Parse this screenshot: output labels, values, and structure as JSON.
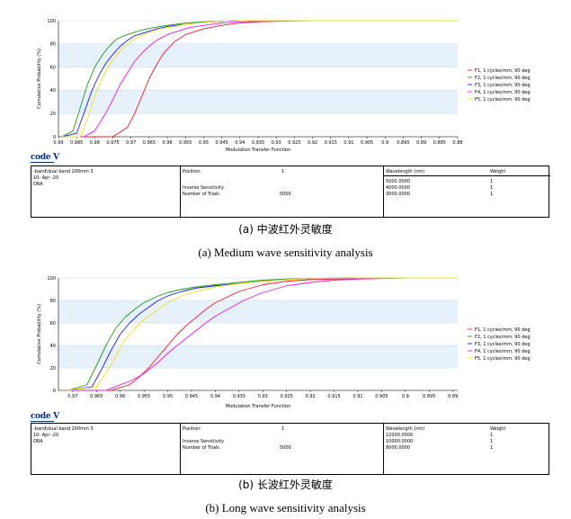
{
  "chart_data": [
    {
      "type": "line",
      "title": "",
      "xlabel": "Modulation Transfer Function",
      "ylabel": "Cumulative Probability (%)",
      "x_reversed": true,
      "xlim": [
        0.99,
        0.88
      ],
      "ylim": [
        0,
        100
      ],
      "x_ticks": [
        "0.99",
        "0.985",
        "0.98",
        "0.975",
        "0.97",
        "0.965",
        "0.96",
        "0.955",
        "0.95",
        "0.945",
        "0.94",
        "0.935",
        "0.93",
        "0.925",
        "0.92",
        "0.915",
        "0.91",
        "0.905",
        "0.9",
        "0.895",
        "0.89",
        "0.885",
        "0.88"
      ],
      "y_ticks": [
        "0",
        "20",
        "40",
        "60",
        "80",
        "100"
      ],
      "grid": true,
      "legend_position": "right",
      "series": [
        {
          "name": "F1, 1 cycles/mm, 90 deg",
          "color": "#ee1c25",
          "x": [
            0.989,
            0.975,
            0.971,
            0.969,
            0.967,
            0.965,
            0.963,
            0.961,
            0.958,
            0.955,
            0.95,
            0.945,
            0.94,
            0.935,
            0.93,
            0.92,
            0.88
          ],
          "y": [
            0,
            0,
            8,
            20,
            35,
            50,
            62,
            72,
            82,
            88,
            93,
            96,
            98,
            99,
            99.5,
            100,
            100
          ]
        },
        {
          "name": "F2, 1 cycles/mm, 90 deg",
          "color": "#1a9a1a",
          "x": [
            0.989,
            0.986,
            0.984,
            0.982,
            0.98,
            0.978,
            0.976,
            0.974,
            0.972,
            0.97,
            0.967,
            0.964,
            0.96,
            0.955,
            0.95,
            0.945,
            0.94,
            0.93,
            0.88
          ],
          "y": [
            0,
            5,
            25,
            45,
            60,
            70,
            78,
            84,
            87,
            89,
            92,
            94,
            96,
            98,
            99,
            99.5,
            100,
            100,
            100
          ]
        },
        {
          "name": "F3, 1 cycles/mm, 90 deg",
          "color": "#1c1ce8",
          "x": [
            0.989,
            0.985,
            0.983,
            0.981,
            0.979,
            0.977,
            0.975,
            0.973,
            0.971,
            0.969,
            0.966,
            0.963,
            0.96,
            0.955,
            0.95,
            0.945,
            0.94,
            0.93,
            0.88
          ],
          "y": [
            0,
            3,
            20,
            38,
            52,
            63,
            71,
            78,
            83,
            87,
            90,
            93,
            95,
            97,
            98.5,
            99.5,
            100,
            100,
            100
          ]
        },
        {
          "name": "F4, 1 cycles/mm, 90 deg",
          "color": "#e619e6",
          "x": [
            0.989,
            0.983,
            0.98,
            0.977,
            0.975,
            0.973,
            0.971,
            0.969,
            0.967,
            0.965,
            0.963,
            0.96,
            0.957,
            0.954,
            0.95,
            0.945,
            0.94,
            0.935,
            0.93,
            0.92,
            0.88
          ],
          "y": [
            0,
            0,
            5,
            20,
            32,
            45,
            55,
            65,
            72,
            78,
            83,
            88,
            91,
            94,
            96,
            98,
            99,
            99.5,
            100,
            100,
            100
          ]
        },
        {
          "name": "F5, 1 cycles/mm, 90 deg",
          "color": "#f0e020",
          "x": [
            0.989,
            0.984,
            0.982,
            0.98,
            0.978,
            0.976,
            0.974,
            0.972,
            0.97,
            0.968,
            0.965,
            0.962,
            0.958,
            0.955,
            0.95,
            0.945,
            0.94,
            0.93,
            0.88
          ],
          "y": [
            0,
            0,
            15,
            35,
            50,
            62,
            70,
            77,
            82,
            86,
            90,
            93,
            95,
            97,
            98.5,
            99.5,
            100,
            100,
            100
          ]
        }
      ]
    },
    {
      "type": "line",
      "title": "",
      "xlabel": "Modulation Transfer Function",
      "ylabel": "Cumulative Probability (%)",
      "x_reversed": true,
      "xlim": [
        0.973,
        0.889
      ],
      "ylim": [
        0,
        100
      ],
      "x_ticks": [
        "0.97",
        "0.965",
        "0.96",
        "0.955",
        "0.95",
        "0.945",
        "0.94",
        "0.935",
        "0.93",
        "0.925",
        "0.92",
        "0.915",
        "0.91",
        "0.905",
        "0.9",
        "0.895",
        "0.89"
      ],
      "y_ticks": [
        "0",
        "20",
        "40",
        "60",
        "80",
        "100"
      ],
      "grid": true,
      "legend_position": "right",
      "series": [
        {
          "name": "F1, 1 cycles/mm, 90 deg",
          "color": "#ee1c25",
          "x": [
            0.971,
            0.962,
            0.958,
            0.956,
            0.954,
            0.952,
            0.95,
            0.948,
            0.946,
            0.944,
            0.942,
            0.94,
            0.935,
            0.93,
            0.925,
            0.92,
            0.91,
            0.9,
            0.889
          ],
          "y": [
            0,
            0,
            5,
            12,
            20,
            30,
            40,
            50,
            58,
            65,
            72,
            78,
            88,
            94,
            97,
            98.5,
            99.5,
            100,
            100
          ]
        },
        {
          "name": "F2, 1 cycles/mm, 90 deg",
          "color": "#1a9a1a",
          "x": [
            0.971,
            0.967,
            0.965,
            0.963,
            0.961,
            0.959,
            0.957,
            0.955,
            0.952,
            0.95,
            0.947,
            0.944,
            0.94,
            0.935,
            0.93,
            0.925,
            0.92,
            0.91,
            0.889
          ],
          "y": [
            0,
            5,
            22,
            40,
            55,
            65,
            72,
            78,
            84,
            87,
            90,
            92,
            94,
            96,
            98,
            99,
            99.5,
            100,
            100
          ]
        },
        {
          "name": "F3, 1 cycles/mm, 90 deg",
          "color": "#1c1ce8",
          "x": [
            0.971,
            0.966,
            0.964,
            0.962,
            0.96,
            0.958,
            0.956,
            0.954,
            0.952,
            0.95,
            0.947,
            0.944,
            0.94,
            0.935,
            0.93,
            0.925,
            0.92,
            0.91,
            0.889
          ],
          "y": [
            0,
            3,
            18,
            35,
            50,
            60,
            68,
            74,
            80,
            84,
            88,
            91,
            93,
            95,
            97,
            98.5,
            99.5,
            100,
            100
          ]
        },
        {
          "name": "F4, 1 cycles/mm, 90 deg",
          "color": "#e619e6",
          "x": [
            0.971,
            0.963,
            0.96,
            0.958,
            0.955,
            0.952,
            0.95,
            0.948,
            0.945,
            0.942,
            0.94,
            0.937,
            0.934,
            0.93,
            0.925,
            0.92,
            0.915,
            0.91,
            0.9,
            0.889
          ],
          "y": [
            0,
            0,
            5,
            8,
            15,
            25,
            33,
            40,
            50,
            60,
            66,
            73,
            80,
            87,
            93,
            96,
            98,
            99,
            100,
            100
          ]
        },
        {
          "name": "F5, 1 cycles/mm, 90 deg",
          "color": "#f0e020",
          "x": [
            0.971,
            0.965,
            0.963,
            0.961,
            0.959,
            0.957,
            0.955,
            0.952,
            0.95,
            0.947,
            0.944,
            0.94,
            0.935,
            0.93,
            0.925,
            0.92,
            0.91,
            0.889
          ],
          "y": [
            0,
            3,
            15,
            30,
            45,
            55,
            63,
            72,
            78,
            84,
            88,
            92,
            95,
            97,
            98.5,
            99.5,
            100,
            100
          ]
        }
      ]
    }
  ],
  "panels": [
    {
      "logo": "code V",
      "info": {
        "col1": [
          "-band\\dual band 200mm 3",
          "10- Apr -20",
          "ORA"
        ],
        "position_label": "Position:",
        "position_value": "1",
        "inverse_sensitivity": "Inverse Sensitivity",
        "number_of_trials_label": "Number of Trials",
        "number_of_trials_value": "5000",
        "wavelength_header": "Wavelength (nm)",
        "weight_header": "Weight",
        "wavelengths": [
          "5000.0000",
          "4000.0000",
          "3000.0000"
        ],
        "weights": [
          "1",
          "1",
          "1"
        ]
      },
      "caption_zh": "(a)  中波红外灵敏度",
      "caption_en": "(a) Medium wave sensitivity analysis"
    },
    {
      "logo": "code V",
      "info": {
        "col1": [
          "-band\\dual band 200mm 3",
          "10- Apr -20",
          "ORA"
        ],
        "position_label": "Position:",
        "position_value": "1",
        "inverse_sensitivity": "Inverse Sensitivity",
        "number_of_trials_label": "Number of Trials",
        "number_of_trials_value": "5000",
        "wavelength_header": "Wavelength (nm)",
        "weight_header": "Weight",
        "wavelengths": [
          "12000.0000",
          "10000.0000",
          "8000.0000"
        ],
        "weights": [
          "1",
          "1",
          "1"
        ]
      },
      "caption_zh": "(b)  长波红外灵敏度",
      "caption_en": "(b) Long wave sensitivity analysis"
    }
  ]
}
